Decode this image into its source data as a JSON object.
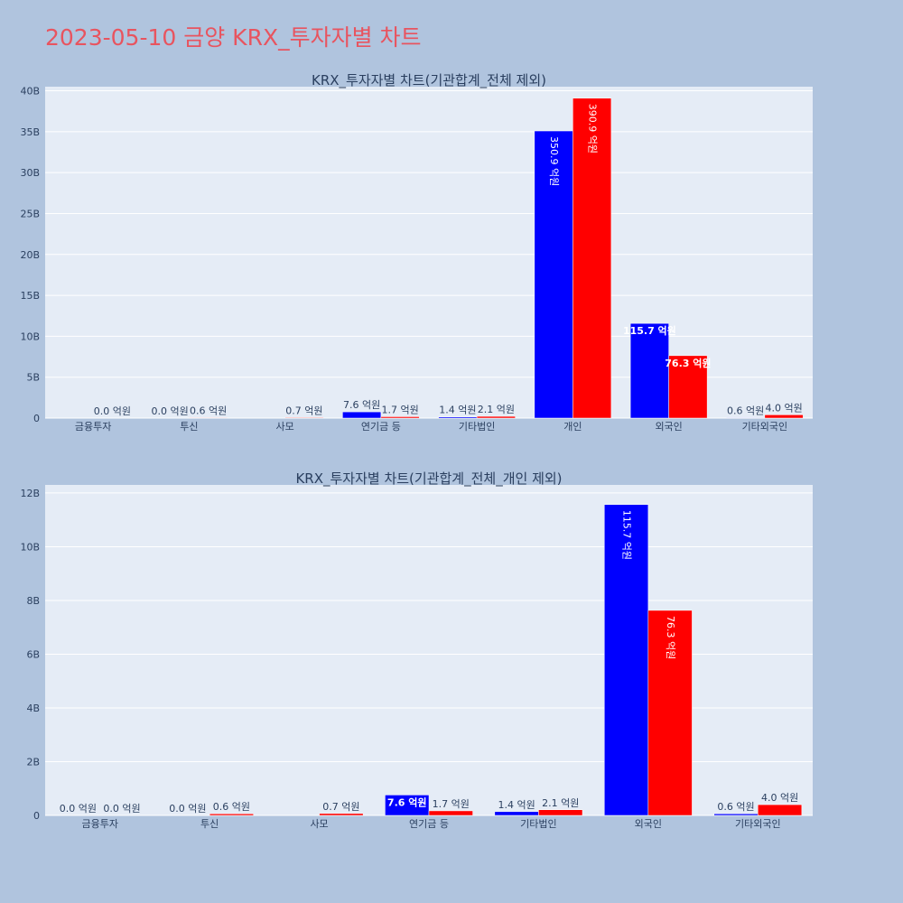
{
  "page": {
    "title": "2023-05-10 금양 KRX_투자자별 차트"
  },
  "chart_data": [
    {
      "type": "bar",
      "title": "KRX_투자자별 차트(기관합계_전체 제외)",
      "categories": [
        "금융투자",
        "투신",
        "사모",
        "연기금 등",
        "기타법인",
        "개인",
        "외국인",
        "기타외국인"
      ],
      "ylim": [
        0,
        40500000000
      ],
      "yticks": [
        {
          "value": 0,
          "label": "0"
        },
        {
          "value": 5000000000,
          "label": "5B"
        },
        {
          "value": 10000000000,
          "label": "10B"
        },
        {
          "value": 15000000000,
          "label": "15B"
        },
        {
          "value": 20000000000,
          "label": "20B"
        },
        {
          "value": 25000000000,
          "label": "25B"
        },
        {
          "value": 30000000000,
          "label": "30B"
        },
        {
          "value": 35000000000,
          "label": "35B"
        },
        {
          "value": 40000000000,
          "label": "40B"
        }
      ],
      "series": [
        {
          "color": "#0000ff",
          "values": [
            0,
            0,
            null,
            760000000,
            140000000,
            35090000000,
            11570000000,
            60000000
          ],
          "labels": [
            "",
            "0.0 억원",
            "",
            "7.6 억원",
            "1.4 억원",
            "350.9 억원",
            "115.7 억원",
            "0.6 억원"
          ]
        },
        {
          "color": "#ff0000",
          "values": [
            0,
            60000000,
            70000000,
            170000000,
            210000000,
            39090000000,
            7630000000,
            400000000
          ],
          "labels": [
            "0.0 억원",
            "0.6 억원",
            "0.7 억원",
            "1.7 억원",
            "2.1 억원",
            "390.9 억원",
            "76.3 억원",
            "4.0 억원"
          ]
        }
      ]
    },
    {
      "type": "bar",
      "title": "KRX_투자자별 차트(기관합계_전체_개인 제외)",
      "categories": [
        "금융투자",
        "투신",
        "사모",
        "연기금 등",
        "기타법인",
        "외국인",
        "기타외국인"
      ],
      "ylim": [
        0,
        12300000000
      ],
      "yticks": [
        {
          "value": 0,
          "label": "0"
        },
        {
          "value": 2000000000,
          "label": "2B"
        },
        {
          "value": 4000000000,
          "label": "4B"
        },
        {
          "value": 6000000000,
          "label": "6B"
        },
        {
          "value": 8000000000,
          "label": "8B"
        },
        {
          "value": 10000000000,
          "label": "10B"
        },
        {
          "value": 12000000000,
          "label": "12B"
        }
      ],
      "series": [
        {
          "color": "#0000ff",
          "values": [
            0,
            0,
            null,
            760000000,
            140000000,
            11570000000,
            60000000
          ],
          "labels": [
            "0.0 억원",
            "0.0 억원",
            "",
            "7.6 억원",
            "1.4 억원",
            "115.7 억원",
            "0.6 억원"
          ]
        },
        {
          "color": "#ff0000",
          "values": [
            0,
            60000000,
            70000000,
            170000000,
            210000000,
            7630000000,
            400000000
          ],
          "labels": [
            "0.0 억원",
            "0.6 억원",
            "0.7 억원",
            "1.7 억원",
            "2.1 억원",
            "76.3 억원",
            "4.0 억원"
          ]
        }
      ]
    }
  ]
}
